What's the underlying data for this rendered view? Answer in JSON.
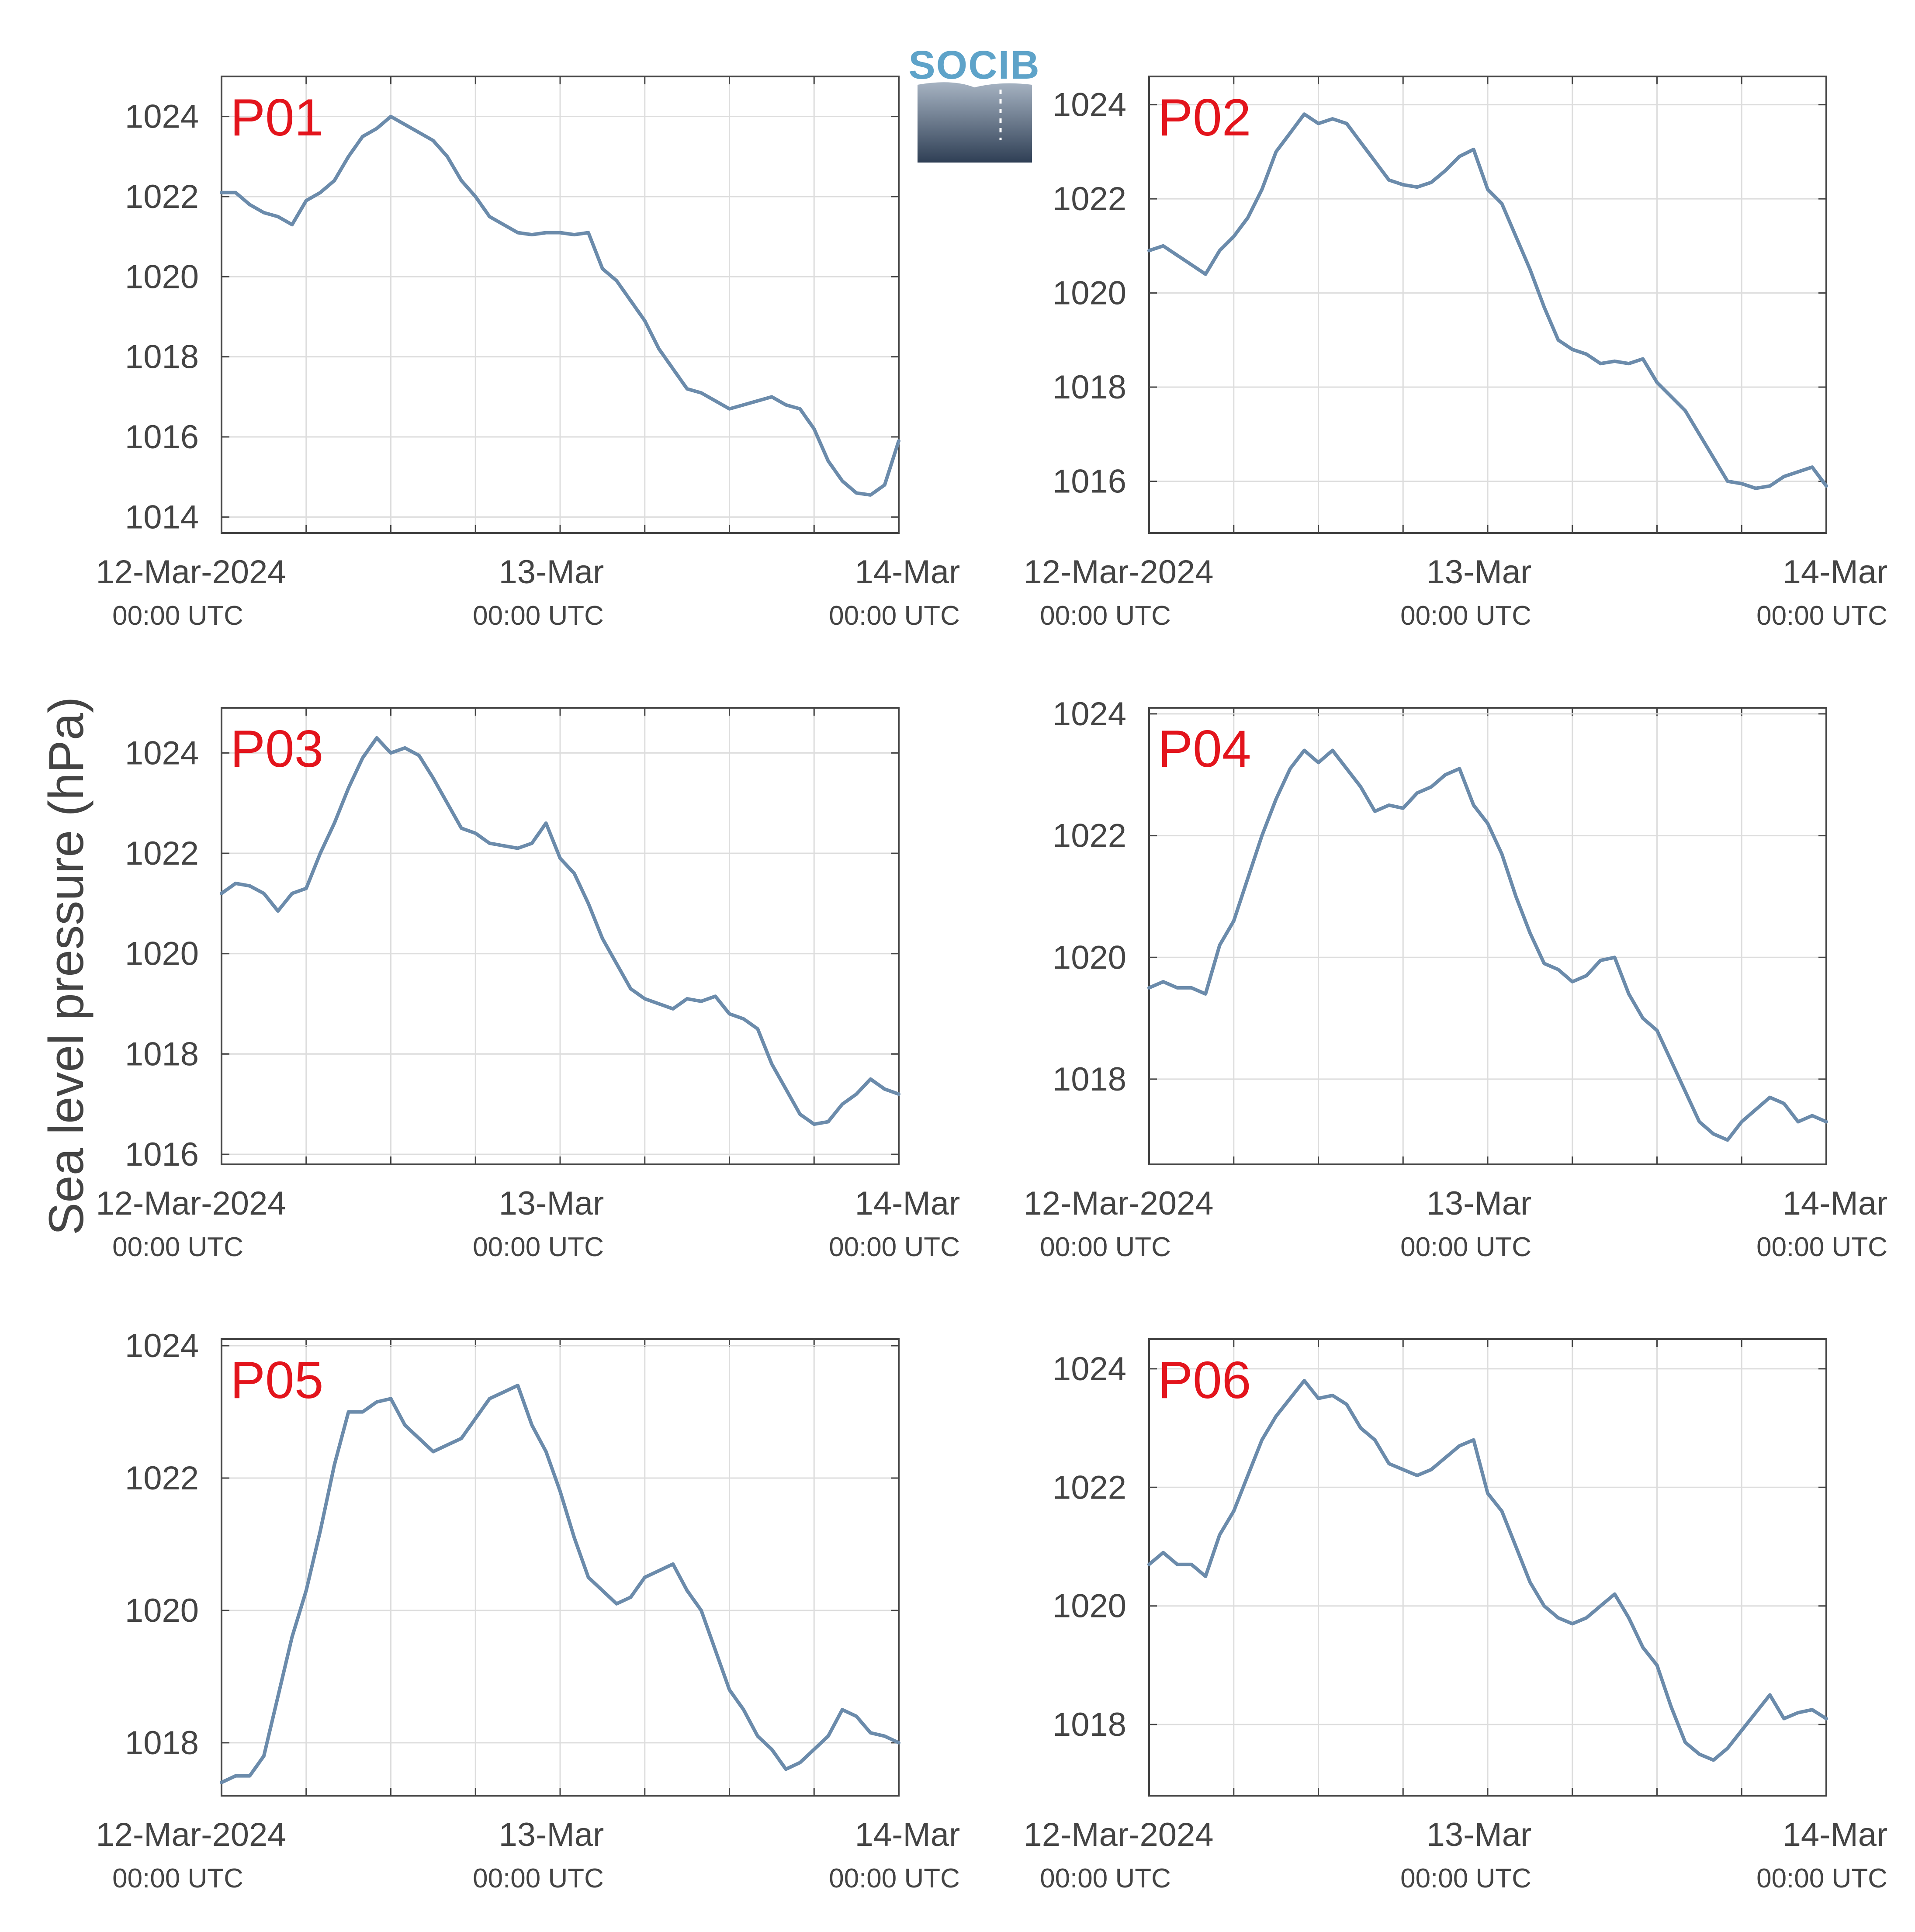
{
  "figure": {
    "ylabel": "Sea level pressure (hPa)",
    "logo": {
      "text": "SOCIB"
    }
  },
  "colors": {
    "line": "#6b8bab",
    "panel_label": "#e3141c",
    "grid": "#dddddd",
    "axis": "#444444"
  },
  "chart_data": [
    {
      "type": "line",
      "name": "P01",
      "ylim": [
        1013.6,
        1025
      ],
      "yticks": [
        1014,
        1016,
        1018,
        1020,
        1022,
        1024
      ],
      "xticks": [
        {
          "main": "12-Mar-2024",
          "sub": "00:00 UTC"
        },
        {
          "main": "13-Mar",
          "sub": "00:00 UTC"
        },
        {
          "main": "14-Mar",
          "sub": "00:00 UTC"
        }
      ],
      "grid": true,
      "x": [
        0,
        1,
        2,
        3,
        4,
        5,
        6,
        7,
        8,
        9,
        10,
        11,
        12,
        13,
        14,
        15,
        16,
        17,
        18,
        19,
        20,
        21,
        22,
        23,
        24,
        25,
        26,
        27,
        28,
        29,
        30,
        31,
        32,
        33,
        34,
        35,
        36,
        37,
        38,
        39,
        40,
        41,
        42,
        43,
        44,
        45,
        46,
        47,
        48
      ],
      "y": [
        1022.1,
        1022.1,
        1021.8,
        1021.6,
        1021.5,
        1021.3,
        1021.9,
        1022.1,
        1022.4,
        1023.0,
        1023.5,
        1023.7,
        1024.0,
        1023.8,
        1023.6,
        1023.4,
        1023.0,
        1022.4,
        1022.0,
        1021.5,
        1021.3,
        1021.1,
        1021.05,
        1021.1,
        1021.1,
        1021.05,
        1021.1,
        1020.2,
        1019.9,
        1019.4,
        1018.9,
        1018.2,
        1017.7,
        1017.2,
        1017.1,
        1016.9,
        1016.7,
        1016.8,
        1016.9,
        1017.0,
        1016.8,
        1016.7,
        1016.2,
        1015.4,
        1014.9,
        1014.6,
        1014.55,
        1014.8,
        1015.9
      ]
    },
    {
      "type": "line",
      "name": "P02",
      "ylim": [
        1014.9,
        1024.6
      ],
      "yticks": [
        1016,
        1018,
        1020,
        1022,
        1024
      ],
      "xticks": [
        {
          "main": "12-Mar-2024",
          "sub": "00:00 UTC"
        },
        {
          "main": "13-Mar",
          "sub": "00:00 UTC"
        },
        {
          "main": "14-Mar",
          "sub": "00:00 UTC"
        }
      ],
      "grid": true,
      "x": [
        0,
        1,
        2,
        3,
        4,
        5,
        6,
        7,
        8,
        9,
        10,
        11,
        12,
        13,
        14,
        15,
        16,
        17,
        18,
        19,
        20,
        21,
        22,
        23,
        24,
        25,
        26,
        27,
        28,
        29,
        30,
        31,
        32,
        33,
        34,
        35,
        36,
        37,
        38,
        39,
        40,
        41,
        42,
        43,
        44,
        45,
        46,
        47,
        48
      ],
      "y": [
        1020.9,
        1021.0,
        1020.8,
        1020.6,
        1020.4,
        1020.9,
        1021.2,
        1021.6,
        1022.2,
        1023.0,
        1023.4,
        1023.8,
        1023.6,
        1023.7,
        1023.6,
        1023.2,
        1022.8,
        1022.4,
        1022.3,
        1022.25,
        1022.35,
        1022.6,
        1022.9,
        1023.05,
        1022.2,
        1021.9,
        1021.2,
        1020.5,
        1019.7,
        1019.0,
        1018.8,
        1018.7,
        1018.5,
        1018.55,
        1018.5,
        1018.6,
        1018.1,
        1017.8,
        1017.5,
        1017.0,
        1016.5,
        1016.0,
        1015.95,
        1015.85,
        1015.9,
        1016.1,
        1016.2,
        1016.3,
        1015.9
      ]
    },
    {
      "type": "line",
      "name": "P03",
      "ylim": [
        1015.8,
        1024.9
      ],
      "yticks": [
        1016,
        1018,
        1020,
        1022,
        1024
      ],
      "xticks": [
        {
          "main": "12-Mar-2024",
          "sub": "00:00 UTC"
        },
        {
          "main": "13-Mar",
          "sub": "00:00 UTC"
        },
        {
          "main": "14-Mar",
          "sub": "00:00 UTC"
        }
      ],
      "grid": true,
      "x": [
        0,
        1,
        2,
        3,
        4,
        5,
        6,
        7,
        8,
        9,
        10,
        11,
        12,
        13,
        14,
        15,
        16,
        17,
        18,
        19,
        20,
        21,
        22,
        23,
        24,
        25,
        26,
        27,
        28,
        29,
        30,
        31,
        32,
        33,
        34,
        35,
        36,
        37,
        38,
        39,
        40,
        41,
        42,
        43,
        44,
        45,
        46,
        47,
        48
      ],
      "y": [
        1021.2,
        1021.4,
        1021.35,
        1021.2,
        1020.85,
        1021.2,
        1021.3,
        1022.0,
        1022.6,
        1023.3,
        1023.9,
        1024.3,
        1024.0,
        1024.1,
        1023.95,
        1023.5,
        1023.0,
        1022.5,
        1022.4,
        1022.2,
        1022.15,
        1022.1,
        1022.2,
        1022.6,
        1021.9,
        1021.6,
        1021.0,
        1020.3,
        1019.8,
        1019.3,
        1019.1,
        1019.0,
        1018.9,
        1019.1,
        1019.05,
        1019.15,
        1018.8,
        1018.7,
        1018.5,
        1017.8,
        1017.3,
        1016.8,
        1016.6,
        1016.65,
        1017.0,
        1017.2,
        1017.5,
        1017.3,
        1017.2
      ]
    },
    {
      "type": "line",
      "name": "P04",
      "ylim": [
        1016.6,
        1024.1
      ],
      "yticks": [
        1018,
        1020,
        1022,
        1024
      ],
      "xticks": [
        {
          "main": "12-Mar-2024",
          "sub": "00:00 UTC"
        },
        {
          "main": "13-Mar",
          "sub": "00:00 UTC"
        },
        {
          "main": "14-Mar",
          "sub": "00:00 UTC"
        }
      ],
      "grid": true,
      "x": [
        0,
        1,
        2,
        3,
        4,
        5,
        6,
        7,
        8,
        9,
        10,
        11,
        12,
        13,
        14,
        15,
        16,
        17,
        18,
        19,
        20,
        21,
        22,
        23,
        24,
        25,
        26,
        27,
        28,
        29,
        30,
        31,
        32,
        33,
        34,
        35,
        36,
        37,
        38,
        39,
        40,
        41,
        42,
        43,
        44,
        45,
        46,
        47,
        48
      ],
      "y": [
        1019.5,
        1019.6,
        1019.5,
        1019.5,
        1019.4,
        1020.2,
        1020.6,
        1021.3,
        1022.0,
        1022.6,
        1023.1,
        1023.4,
        1023.2,
        1023.4,
        1023.1,
        1022.8,
        1022.4,
        1022.5,
        1022.45,
        1022.7,
        1022.8,
        1023.0,
        1023.1,
        1022.5,
        1022.2,
        1021.7,
        1021.0,
        1020.4,
        1019.9,
        1019.8,
        1019.6,
        1019.7,
        1019.95,
        1020.0,
        1019.4,
        1019.0,
        1018.8,
        1018.3,
        1017.8,
        1017.3,
        1017.1,
        1017.0,
        1017.3,
        1017.5,
        1017.7,
        1017.6,
        1017.3,
        1017.4,
        1017.3
      ]
    },
    {
      "type": "line",
      "name": "P05",
      "ylim": [
        1017.2,
        1024.1
      ],
      "yticks": [
        1018,
        1020,
        1022,
        1024
      ],
      "xticks": [
        {
          "main": "12-Mar-2024",
          "sub": "00:00 UTC"
        },
        {
          "main": "13-Mar",
          "sub": "00:00 UTC"
        },
        {
          "main": "14-Mar",
          "sub": "00:00 UTC"
        }
      ],
      "grid": true,
      "x": [
        0,
        1,
        2,
        3,
        4,
        5,
        6,
        7,
        8,
        9,
        10,
        11,
        12,
        13,
        14,
        15,
        16,
        17,
        18,
        19,
        20,
        21,
        22,
        23,
        24,
        25,
        26,
        27,
        28,
        29,
        30,
        31,
        32,
        33,
        34,
        35,
        36,
        37,
        38,
        39,
        40,
        41,
        42,
        43,
        44,
        45,
        46,
        47,
        48
      ],
      "y": [
        1017.4,
        1017.5,
        1017.5,
        1017.8,
        1018.7,
        1019.6,
        1020.3,
        1021.2,
        1022.2,
        1023.0,
        1023.0,
        1023.15,
        1023.2,
        1022.8,
        1022.6,
        1022.4,
        1022.5,
        1022.6,
        1022.9,
        1023.2,
        1023.3,
        1023.4,
        1022.8,
        1022.4,
        1021.8,
        1021.1,
        1020.5,
        1020.3,
        1020.1,
        1020.2,
        1020.5,
        1020.6,
        1020.7,
        1020.3,
        1020.0,
        1019.4,
        1018.8,
        1018.5,
        1018.1,
        1017.9,
        1017.6,
        1017.7,
        1017.9,
        1018.1,
        1018.5,
        1018.4,
        1018.15,
        1018.1,
        1018.0
      ]
    },
    {
      "type": "line",
      "name": "P06",
      "ylim": [
        1016.8,
        1024.5
      ],
      "yticks": [
        1018,
        1020,
        1022,
        1024
      ],
      "xticks": [
        {
          "main": "12-Mar-2024",
          "sub": "00:00 UTC"
        },
        {
          "main": "13-Mar",
          "sub": "00:00 UTC"
        },
        {
          "main": "14-Mar",
          "sub": "00:00 UTC"
        }
      ],
      "grid": true,
      "x": [
        0,
        1,
        2,
        3,
        4,
        5,
        6,
        7,
        8,
        9,
        10,
        11,
        12,
        13,
        14,
        15,
        16,
        17,
        18,
        19,
        20,
        21,
        22,
        23,
        24,
        25,
        26,
        27,
        28,
        29,
        30,
        31,
        32,
        33,
        34,
        35,
        36,
        37,
        38,
        39,
        40,
        41,
        42,
        43,
        44,
        45,
        46,
        47,
        48
      ],
      "y": [
        1020.7,
        1020.9,
        1020.7,
        1020.7,
        1020.5,
        1021.2,
        1021.6,
        1022.2,
        1022.8,
        1023.2,
        1023.5,
        1023.8,
        1023.5,
        1023.55,
        1023.4,
        1023.0,
        1022.8,
        1022.4,
        1022.3,
        1022.2,
        1022.3,
        1022.5,
        1022.7,
        1022.8,
        1021.9,
        1021.6,
        1021.0,
        1020.4,
        1020.0,
        1019.8,
        1019.7,
        1019.8,
        1020.0,
        1020.2,
        1019.8,
        1019.3,
        1019.0,
        1018.3,
        1017.7,
        1017.5,
        1017.4,
        1017.6,
        1017.9,
        1018.2,
        1018.5,
        1018.1,
        1018.2,
        1018.25,
        1018.1
      ]
    }
  ]
}
